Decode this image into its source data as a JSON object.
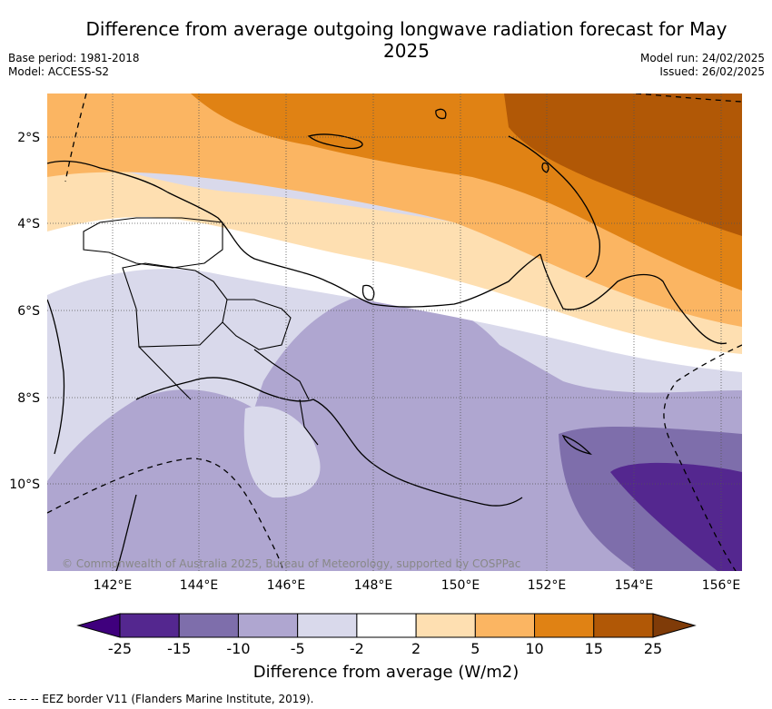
{
  "title": "Difference from average outgoing longwave radiation forecast for May 2025",
  "meta_left": {
    "base_period": "Base period: 1981-2018",
    "model": "Model: ACCESS-S2"
  },
  "meta_right": {
    "model_run": "Model run: 24/02/2025",
    "issued": "Issued: 26/02/2025"
  },
  "map": {
    "region": "Papua New Guinea",
    "lat_ticks": [
      "2°S",
      "4°S",
      "6°S",
      "8°S",
      "10°S"
    ],
    "lon_ticks": [
      "142°E",
      "144°E",
      "146°E",
      "148°E",
      "150°E",
      "152°E",
      "154°E",
      "156°E"
    ],
    "copyright": "© Commonwealth of Australia 2025, Bureau of Meteorology, supported by COSPPac"
  },
  "colorbar": {
    "labels": [
      "-25",
      "-15",
      "-10",
      "-5",
      "-2",
      "2",
      "5",
      "10",
      "15",
      "25"
    ],
    "colors": [
      "#54278f",
      "#7e6eab",
      "#afa6d0",
      "#d9d9eb",
      "#ffffff",
      "#fedfb1",
      "#fbb562",
      "#e08214",
      "#b15806"
    ],
    "under_color": "#3f007d",
    "over_color": "#7f3b08",
    "title": "Difference from average (W/m2)"
  },
  "legend_note": "-- -- -- EEZ border V11 (Flanders Marine Institute, 2019)."
}
